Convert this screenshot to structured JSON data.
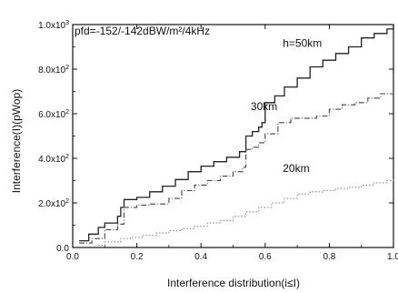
{
  "chart_data": {
    "type": "line",
    "annotation": "pfd=-152/-142dBW/m²/4kHz",
    "xlabel": "Interference distribution(i≤I)",
    "ylabel": "Interference(I)(pWop)",
    "xlim": [
      0,
      1
    ],
    "ylim": [
      0,
      1000
    ],
    "x_ticks": [
      "0.0",
      "0.2",
      "0.4",
      "0.6",
      "0.8",
      "1.0"
    ],
    "y_ticks": [
      {
        "mantissa": "0.0",
        "exp": ""
      },
      {
        "mantissa": "2.0x10",
        "exp": "2"
      },
      {
        "mantissa": "4.0x10",
        "exp": "2"
      },
      {
        "mantissa": "6.0x10",
        "exp": "2"
      },
      {
        "mantissa": "8.0x10",
        "exp": "2"
      },
      {
        "mantissa": "1.0x10",
        "exp": "3"
      }
    ],
    "grid": false,
    "series": [
      {
        "name": "h=50km",
        "style": "solid",
        "color": "#222222",
        "x": [
          0.02,
          0.05,
          0.08,
          0.1,
          0.14,
          0.15,
          0.16,
          0.2,
          0.24,
          0.28,
          0.32,
          0.36,
          0.4,
          0.44,
          0.48,
          0.52,
          0.54,
          0.56,
          0.58,
          0.59,
          0.6,
          0.63,
          0.66,
          0.7,
          0.74,
          0.78,
          0.82,
          0.86,
          0.9,
          0.94,
          0.98,
          1.0
        ],
        "y": [
          30,
          60,
          90,
          110,
          140,
          180,
          215,
          225,
          250,
          275,
          305,
          340,
          365,
          385,
          405,
          430,
          500,
          520,
          540,
          560,
          650,
          680,
          720,
          760,
          810,
          840,
          870,
          900,
          940,
          960,
          980,
          1000
        ]
      },
      {
        "name": "30km",
        "style": "dash-dot",
        "color": "#444444",
        "x": [
          0.02,
          0.06,
          0.1,
          0.14,
          0.16,
          0.2,
          0.24,
          0.3,
          0.34,
          0.38,
          0.42,
          0.46,
          0.5,
          0.53,
          0.54,
          0.56,
          0.58,
          0.6,
          0.64,
          0.68,
          0.72,
          0.76,
          0.8,
          0.84,
          0.88,
          0.92,
          0.96,
          1.0
        ],
        "y": [
          20,
          40,
          80,
          105,
          180,
          190,
          195,
          220,
          255,
          280,
          300,
          320,
          340,
          360,
          440,
          450,
          470,
          510,
          560,
          580,
          580,
          590,
          620,
          640,
          650,
          670,
          690,
          700
        ]
      },
      {
        "name": "20km",
        "style": "dotted",
        "color": "#888888",
        "x": [
          0.08,
          0.1,
          0.15,
          0.18,
          0.22,
          0.26,
          0.3,
          0.34,
          0.38,
          0.42,
          0.46,
          0.5,
          0.54,
          0.58,
          0.62,
          0.66,
          0.7,
          0.74,
          0.78,
          0.82,
          0.86,
          0.9,
          0.94,
          0.98,
          1.0
        ],
        "y": [
          10,
          25,
          40,
          45,
          55,
          65,
          75,
          85,
          95,
          110,
          120,
          140,
          160,
          180,
          200,
          220,
          240,
          250,
          255,
          265,
          270,
          280,
          290,
          300,
          305
        ]
      }
    ],
    "series_label_positions": [
      "right-of-curve",
      "right-of-curve",
      "below-curve"
    ]
  }
}
